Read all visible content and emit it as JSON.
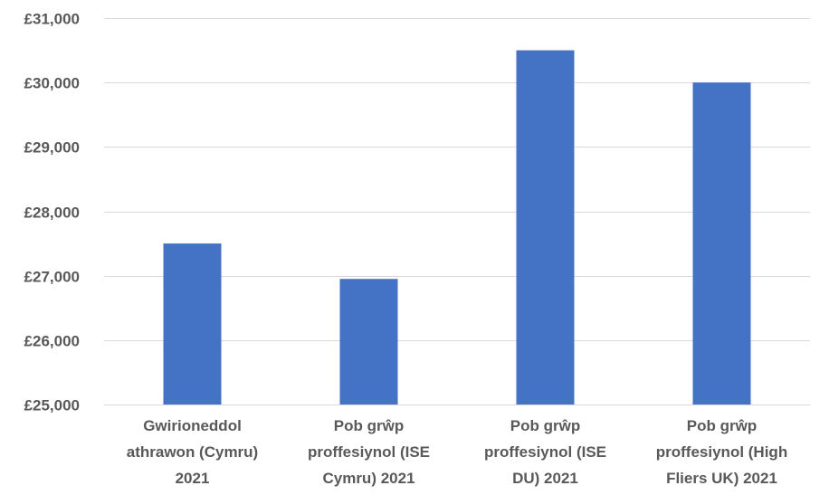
{
  "chart_data": {
    "type": "bar",
    "categories": [
      [
        "Gwirioneddol",
        "athrawon (Cymru)",
        "2021"
      ],
      [
        "Pob grŵp",
        "proffesiynol (ISE",
        "Cymru) 2021"
      ],
      [
        "Pob grŵp",
        "proffesiynol (ISE",
        "DU) 2021"
      ],
      [
        "Pob grŵp",
        "proffesiynol (High",
        "Fliers UK) 2021"
      ]
    ],
    "values": [
      27500,
      26950,
      30500,
      30000
    ],
    "ylim": [
      25000,
      31000
    ],
    "yticks": [
      25000,
      26000,
      27000,
      28000,
      29000,
      30000,
      31000
    ],
    "ytick_labels": [
      "£25,000",
      "£26,000",
      "£27,000",
      "£28,000",
      "£29,000",
      "£30,000",
      "£31,000"
    ],
    "grid": true,
    "colors": {
      "bar": "#4472C4",
      "grid": "#d9d9d9",
      "text": "#595959"
    }
  }
}
